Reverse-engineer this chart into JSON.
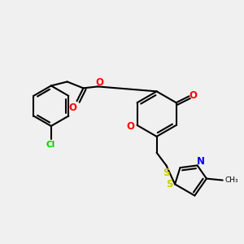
{
  "bg_color": "#f0f0f0",
  "bond_color": "#000000",
  "atom_colors": {
    "O": "#ff0000",
    "N": "#0000ff",
    "S": "#cccc00",
    "Cl": "#00cc00",
    "C": "#000000"
  },
  "lw": 1.5
}
